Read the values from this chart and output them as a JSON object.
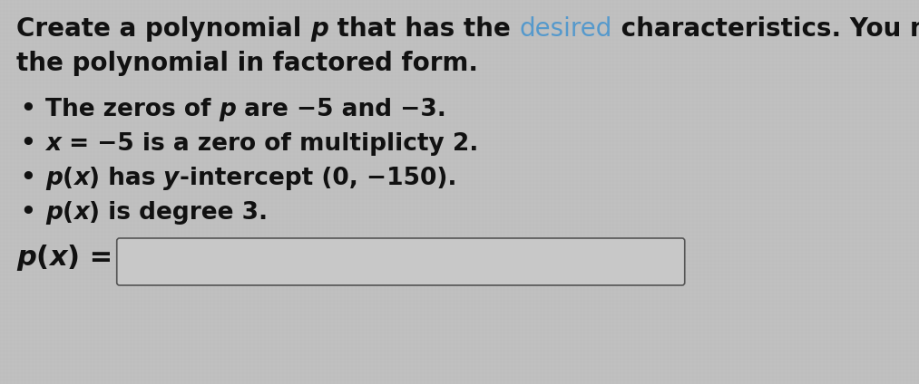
{
  "bg_color": "#c0c0c0",
  "text_color": "#111111",
  "desired_color": "#5599cc",
  "box_facecolor": "#c8c8c8",
  "box_edgecolor": "#555555",
  "font_size_title": 20,
  "font_size_bullets": 19,
  "font_size_label": 22,
  "title_part1": "Create a polynomial ",
  "title_p": "p",
  "title_part2": " that has the ",
  "title_desired": "desired",
  "title_part3": " characteristics. You may leave",
  "title_line2": "the polynomial in factored form.",
  "bullet1_prefix": "The zeros of ",
  "bullet1_p": "p",
  "bullet1_suffix": " are −5 and −3.",
  "bullet2": "x = −5 is a zero of multiplicty 2.",
  "bullet3": "p(x) has y-intercept (0, −150).",
  "bullet4": "p(x) is degree 3.",
  "label": "p(x) ="
}
